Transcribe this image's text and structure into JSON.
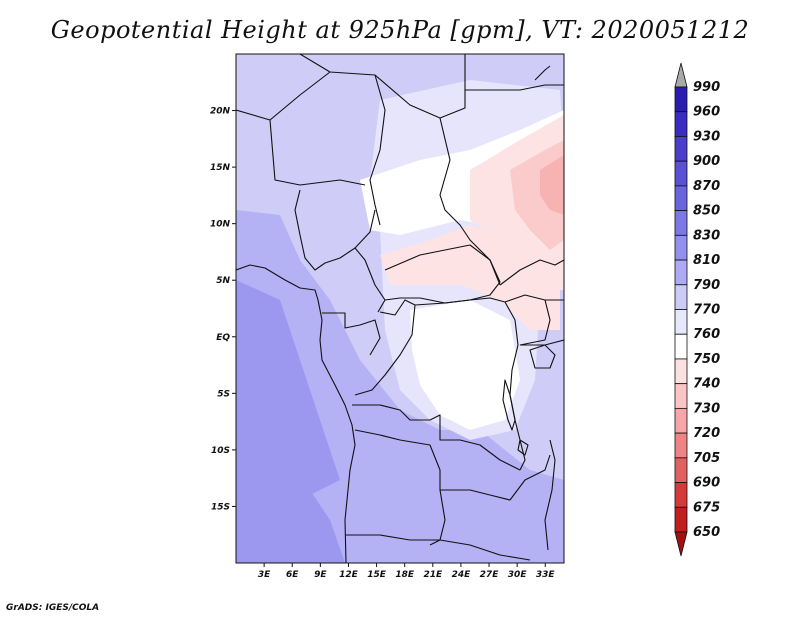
{
  "title": "Geopotential Height at 925hPa [gpm], VT: 2020051212",
  "credit": "GrADS: IGES/COLA",
  "map": {
    "lon_range": [
      0,
      35
    ],
    "lat_range": [
      -20,
      25
    ],
    "lon_ticks": [
      "3E",
      "6E",
      "9E",
      "12E",
      "15E",
      "18E",
      "21E",
      "24E",
      "27E",
      "30E",
      "33E"
    ],
    "lat_ticks": [
      "20N",
      "15N",
      "10N",
      "5N",
      "EQ",
      "5S",
      "10S",
      "15S"
    ]
  },
  "colorbar": {
    "levels": [
      "990",
      "960",
      "930",
      "900",
      "870",
      "850",
      "830",
      "810",
      "790",
      "770",
      "760",
      "750",
      "740",
      "730",
      "720",
      "705",
      "690",
      "675",
      "650"
    ],
    "colors": [
      "#1f0aa0",
      "#2b1cb0",
      "#3a2cc0",
      "#4a3ecb",
      "#5a50d6",
      "#6b64df",
      "#7c78e6",
      "#9390ee",
      "#aeaaf3",
      "#cccbf8",
      "#e8e8fc",
      "#ffffff",
      "#fde0e0",
      "#fbc5c5",
      "#f6a6a6",
      "#ef8484",
      "#e36060",
      "#d53a3a",
      "#c11e1e",
      "#a50f0f"
    ],
    "top_arrow_color": "#a9a9a9",
    "bottom_arrow_color": "#a50f0f"
  },
  "field_colors": {
    "c810": "#9c98ef",
    "c790": "#b4b1f4",
    "c770": "#cfcdf8",
    "c760": "#e6e5fc",
    "c750": "#ffffff",
    "c740": "#fde3e3",
    "c730": "#fbcaca",
    "c720": "#f7b2b2"
  }
}
